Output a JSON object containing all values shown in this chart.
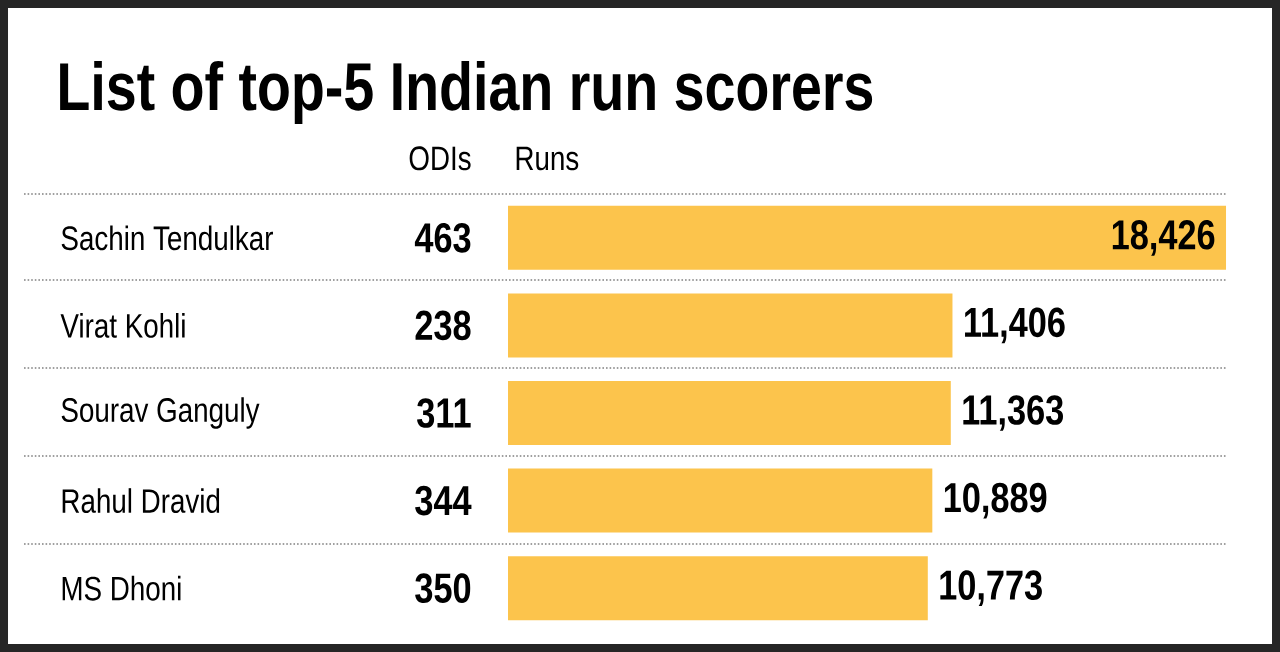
{
  "chart_data": {
    "type": "bar",
    "orientation": "horizontal",
    "title": "List of top-5 Indian run scorers",
    "xlabel": "Runs",
    "categories": [
      "Sachin Tendulkar",
      "Virat Kohli",
      "Sourav Ganguly",
      "Rahul Dravid",
      "MS Dhoni"
    ],
    "values": [
      18426,
      11406,
      11363,
      10889,
      10773
    ],
    "value_labels": [
      "18,426",
      "11,406",
      "11,363",
      "10,889",
      "10,773"
    ],
    "color": "#fcc44c",
    "annotations": [
      "ODIs",
      "463",
      "238",
      "311",
      "344",
      "350"
    ]
  }
}
